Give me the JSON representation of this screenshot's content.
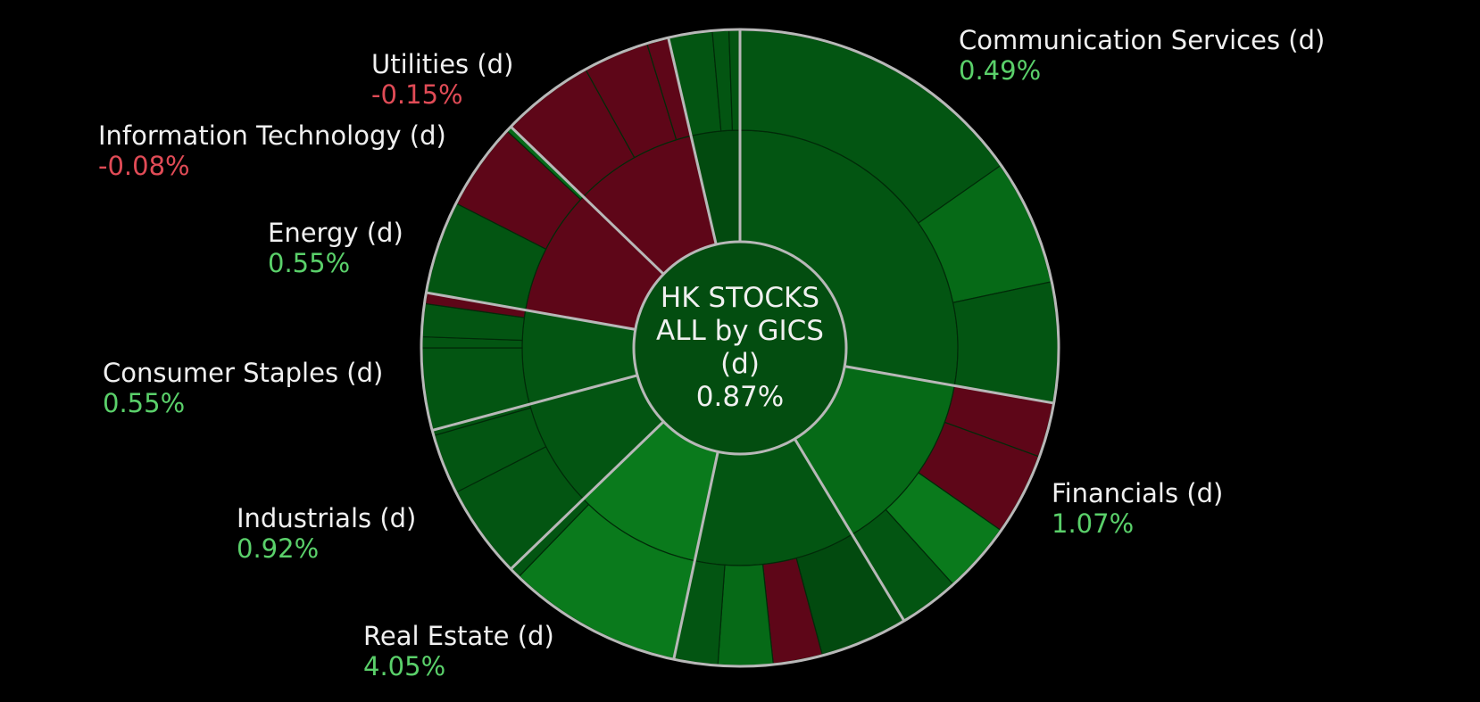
{
  "colors": {
    "background": "#000000",
    "up_light": "#0a7a1c",
    "up_mid": "#066a17",
    "up_dark": "#035512",
    "up_darker": "#024a0f",
    "down": "#5e0618",
    "positive_text": "#5ad06a",
    "negative_text": "#e04b56",
    "separator": "#b8b8b8"
  },
  "chart_data": {
    "type": "sunburst",
    "center": {
      "lines": [
        "HK STOCKS",
        "ALL by GICS",
        "(d)"
      ],
      "value": "0.87%"
    },
    "sectors": [
      {
        "name": "Communication Services (d)",
        "value": "0.49%",
        "start_deg": 0,
        "end_deg": 100,
        "color": "up_dark",
        "children": [
          {
            "start_deg": 0,
            "end_deg": 100,
            "color": "up_dark"
          }
        ],
        "leaves": [
          {
            "start_deg": 0,
            "end_deg": 55,
            "color": "up_dark"
          },
          {
            "start_deg": 55,
            "end_deg": 78,
            "color": "up_mid"
          },
          {
            "start_deg": 78,
            "end_deg": 100,
            "color": "up_dark"
          }
        ]
      },
      {
        "name": "Financials (d)",
        "value": "1.07%",
        "start_deg": 100,
        "end_deg": 149,
        "color": "up_mid",
        "children": [
          {
            "start_deg": 100,
            "end_deg": 149,
            "color": "up_mid"
          }
        ],
        "leaves": [
          {
            "start_deg": 100,
            "end_deg": 110,
            "color": "down"
          },
          {
            "start_deg": 110,
            "end_deg": 125,
            "color": "down"
          },
          {
            "start_deg": 125,
            "end_deg": 138,
            "color": "up_light"
          },
          {
            "start_deg": 138,
            "end_deg": 149,
            "color": "up_dark"
          }
        ]
      },
      {
        "name": "Real Estate (d)",
        "value": "4.05%",
        "start_deg": 149,
        "end_deg": 192,
        "color": "up_dark",
        "children": [
          {
            "start_deg": 149,
            "end_deg": 192,
            "color": "up_dark"
          }
        ],
        "leaves": [
          {
            "start_deg": 149,
            "end_deg": 165,
            "color": "up_darker"
          },
          {
            "start_deg": 165,
            "end_deg": 174,
            "color": "down"
          },
          {
            "start_deg": 174,
            "end_deg": 184,
            "color": "up_mid"
          },
          {
            "start_deg": 184,
            "end_deg": 192,
            "color": "up_dark"
          }
        ]
      },
      {
        "name": "Industrials (d)",
        "value": "0.92%",
        "start_deg": 192,
        "end_deg": 226,
        "color": "up_light",
        "children": [
          {
            "start_deg": 192,
            "end_deg": 226,
            "color": "up_light"
          }
        ],
        "leaves": [
          {
            "start_deg": 192,
            "end_deg": 224,
            "color": "up_light"
          },
          {
            "start_deg": 224,
            "end_deg": 226,
            "color": "up_dark"
          }
        ]
      },
      {
        "name": "Consumer Staples (d)",
        "value": "0.55%",
        "start_deg": 226,
        "end_deg": 255,
        "color": "up_dark",
        "children": [
          {
            "start_deg": 226,
            "end_deg": 255,
            "color": "up_dark"
          }
        ],
        "leaves": [
          {
            "start_deg": 226,
            "end_deg": 243,
            "color": "up_dark"
          },
          {
            "start_deg": 243,
            "end_deg": 254,
            "color": "up_dark"
          },
          {
            "start_deg": 254,
            "end_deg": 255,
            "color": "up_dark"
          }
        ]
      },
      {
        "name": "Energy (d)",
        "value": "0.55%",
        "start_deg": 255,
        "end_deg": 280,
        "color": "up_dark",
        "children": [
          {
            "start_deg": 255,
            "end_deg": 280,
            "color": "up_dark"
          }
        ],
        "leaves": [
          {
            "start_deg": 255,
            "end_deg": 270,
            "color": "up_dark"
          },
          {
            "start_deg": 270,
            "end_deg": 272,
            "color": "up_dark"
          },
          {
            "start_deg": 272,
            "end_deg": 278,
            "color": "up_dark"
          },
          {
            "start_deg": 278,
            "end_deg": 280,
            "color": "down"
          }
        ]
      },
      {
        "name": "Information Technology (d)",
        "value": "-0.08%",
        "start_deg": 280,
        "end_deg": 314,
        "color": "down",
        "children": [
          {
            "start_deg": 280,
            "end_deg": 314,
            "color": "down"
          }
        ],
        "leaves": [
          {
            "start_deg": 280,
            "end_deg": 297,
            "color": "up_dark"
          },
          {
            "start_deg": 297,
            "end_deg": 313,
            "color": "down"
          },
          {
            "start_deg": 313,
            "end_deg": 314,
            "color": "up_mid"
          }
        ]
      },
      {
        "name": "Utilities (d)",
        "value": "-0.15%",
        "start_deg": 314,
        "end_deg": 347,
        "color": "down",
        "children": [
          {
            "start_deg": 314,
            "end_deg": 347,
            "color": "down"
          }
        ],
        "leaves": [
          {
            "start_deg": 314,
            "end_deg": 331,
            "color": "down"
          },
          {
            "start_deg": 331,
            "end_deg": 343,
            "color": "down"
          },
          {
            "start_deg": 343,
            "end_deg": 347,
            "color": "down"
          }
        ]
      },
      {
        "name": "",
        "value": "",
        "start_deg": 347,
        "end_deg": 360,
        "color": "up_darker",
        "children": [
          {
            "start_deg": 347,
            "end_deg": 360,
            "color": "up_darker"
          }
        ],
        "leaves": [
          {
            "start_deg": 347,
            "end_deg": 355,
            "color": "up_dark"
          },
          {
            "start_deg": 355,
            "end_deg": 358,
            "color": "up_dark"
          },
          {
            "start_deg": 358,
            "end_deg": 360,
            "color": "up_dark"
          }
        ]
      }
    ]
  }
}
